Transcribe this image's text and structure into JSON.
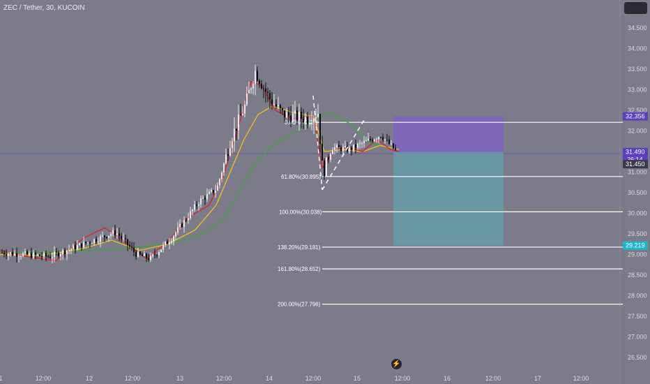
{
  "symbol_header": "ZEC / Tether, 30, KUCOIN",
  "colors": {
    "background": "#7b7b89",
    "candle_up": "#e9e9ec",
    "candle_down": "#0c0c10",
    "ema_fast": "#e0202a",
    "ema_mid": "#f2c01e",
    "ema_slow": "#3aa640",
    "stop_zone": "#7e62c0",
    "target_zone": "#64a0ad",
    "fib_line": "#ffffff",
    "price_badge": "#5b3fbf",
    "target_badge": "#1fb7c8",
    "crosshair": "#5a5aa0"
  },
  "axis": {
    "y_ticks": [
      "34.500",
      "34.000",
      "33.500",
      "33.000",
      "32.500",
      "32.000",
      "31.500",
      "31.000",
      "30.500",
      "30.000",
      "29.500",
      "29.000",
      "28.500",
      "28.000",
      "27.500",
      "27.000",
      "26.500"
    ],
    "x_ticks": [
      "1",
      "12:00",
      "12",
      "12:00",
      "13",
      "12:00",
      "14",
      "12:00",
      "15",
      "12:00",
      "16",
      "12:00",
      "17",
      "12:00"
    ]
  },
  "price_labels": {
    "stop_price": "32.356",
    "current_price": "31.490",
    "countdown": "26:14",
    "crosshair_price": "31.450",
    "target_price": "29.219"
  },
  "fib_labels": {
    "top": "0.00%(32.21)",
    "f618": "61.80%(30.895)",
    "f100": "100.00%(30.038)",
    "f1382": "138.20%(29.181)",
    "f1618": "161.80%(28.652)",
    "f200": "200.00%(27.796)"
  },
  "chart_data": {
    "type": "candlestick",
    "title": "ZEC / Tether, 30, KUCOIN",
    "ylim": [
      26.3,
      34.9
    ],
    "ohlc_approx": [
      {
        "x": "11 00:00",
        "close": 29.1
      },
      {
        "x": "11 12:00",
        "close": 28.9
      },
      {
        "x": "12 00:00",
        "close": 29.4
      },
      {
        "x": "12 12:00",
        "close": 28.95
      },
      {
        "x": "13 00:00",
        "close": 29.3
      },
      {
        "x": "13 06:00",
        "close": 30.2
      },
      {
        "x": "13 12:00",
        "close": 31.3
      },
      {
        "x": "13 18:00",
        "close": 33.5
      },
      {
        "x": "14 00:00",
        "close": 32.5
      },
      {
        "x": "14 12:00",
        "close": 32.3
      },
      {
        "x": "14 14:00",
        "close": 30.85
      },
      {
        "x": "14 20:00",
        "close": 31.6
      },
      {
        "x": "15 00:00",
        "close": 31.7
      },
      {
        "x": "15 06:00",
        "close": 31.49
      }
    ],
    "fib_levels": [
      {
        "label": "0.00%",
        "price": 32.21
      },
      {
        "label": "61.80%",
        "price": 30.895
      },
      {
        "label": "100.00%",
        "price": 30.038
      },
      {
        "label": "138.20%",
        "price": 29.181
      },
      {
        "label": "161.80%",
        "price": 28.652
      },
      {
        "label": "200.00%",
        "price": 27.796
      }
    ],
    "position": {
      "entry": 31.49,
      "stop": 32.356,
      "target": 29.219,
      "side": "short"
    },
    "current_price": 31.49
  }
}
